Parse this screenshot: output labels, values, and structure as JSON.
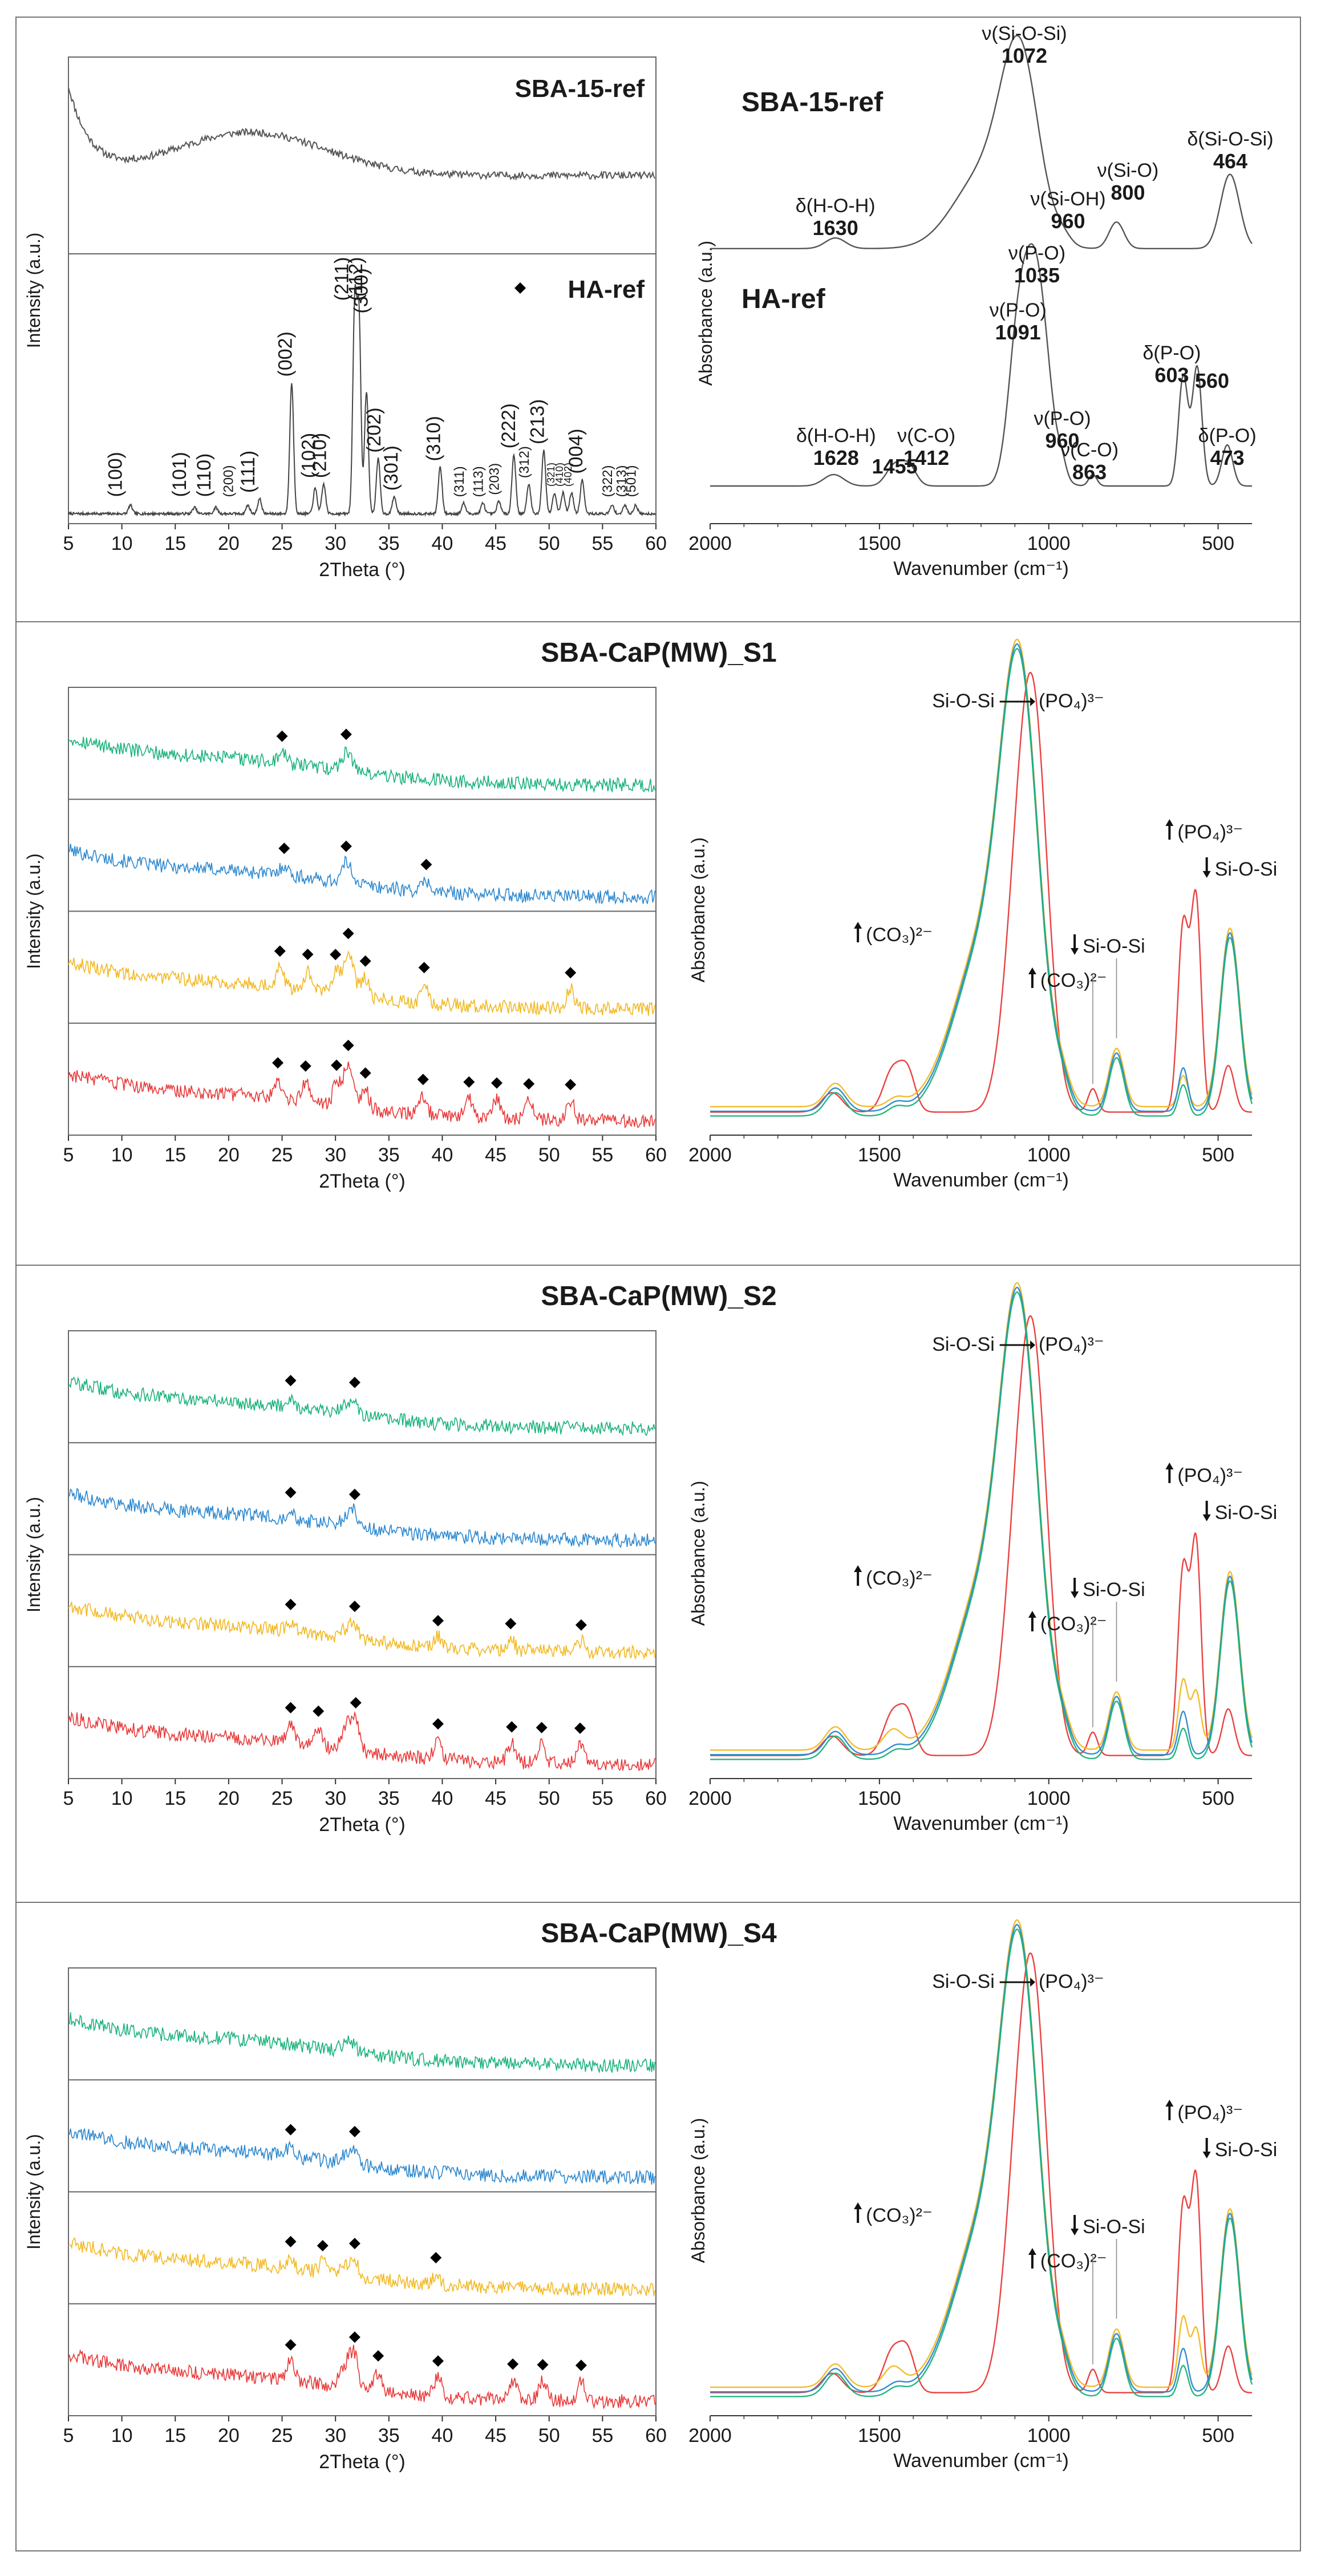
{
  "colors": {
    "green": "#19b27a",
    "blue": "#2a87cf",
    "yellow": "#f2b820",
    "red": "#e83838",
    "gray": "#555555",
    "annotation_red": "#e85555",
    "frame": "#777777"
  },
  "chart_data": [
    {
      "id": "ref-xrd",
      "type": "line",
      "xlabel": "2Theta (°)",
      "ylabel": "Intensity (a.u.)",
      "xlim": [
        5,
        60
      ],
      "x_ticks": [
        5,
        10,
        15,
        20,
        25,
        30,
        35,
        40,
        45,
        50,
        55,
        60
      ],
      "stack_titles": [
        "SBA-15-ref",
        "HA-ref"
      ],
      "ha_legend": "HA-ref",
      "series": [
        {
          "name": "SBA-15-ref",
          "kind": "amorphous",
          "color": "gray"
        },
        {
          "name": "HA-ref",
          "kind": "crystalline",
          "color": "gray"
        }
      ],
      "hkl_labels": [
        {
          "x": 10.0,
          "label": "(100)",
          "size": "big"
        },
        {
          "x": 16.0,
          "label": "(101)",
          "size": "big"
        },
        {
          "x": 18.3,
          "label": "(110)",
          "size": "big"
        },
        {
          "x": 20.4,
          "label": "(200)",
          "size": "small"
        },
        {
          "x": 22.4,
          "label": "(111)",
          "size": "big"
        },
        {
          "x": 25.9,
          "label": "(002)",
          "size": "big"
        },
        {
          "x": 28.1,
          "label": "(102)",
          "size": "big"
        },
        {
          "x": 29.1,
          "label": "(210)",
          "size": "big"
        },
        {
          "x": 31.2,
          "label": "(211)",
          "size": "big"
        },
        {
          "x": 32.5,
          "label": "(112)",
          "size": "big"
        },
        {
          "x": 33.0,
          "label": "(300)",
          "size": "big"
        },
        {
          "x": 34.2,
          "label": "(202)",
          "size": "big"
        },
        {
          "x": 35.8,
          "label": "(301)",
          "size": "big"
        },
        {
          "x": 39.8,
          "label": "(310)",
          "size": "big"
        },
        {
          "x": 42.0,
          "label": "(311)",
          "size": "small"
        },
        {
          "x": 43.8,
          "label": "(113)",
          "size": "small"
        },
        {
          "x": 45.3,
          "label": "(203)",
          "size": "small"
        },
        {
          "x": 46.8,
          "label": "(222)",
          "size": "big"
        },
        {
          "x": 48.1,
          "label": "(312)",
          "size": "small"
        },
        {
          "x": 49.5,
          "label": "(213)",
          "size": "big"
        },
        {
          "x": 50.5,
          "label": "(321)",
          "size": "tiny"
        },
        {
          "x": 51.3,
          "label": "(410)",
          "size": "tiny"
        },
        {
          "x": 52.1,
          "label": "(402)",
          "size": "tiny"
        },
        {
          "x": 53.1,
          "label": "(004)",
          "size": "big"
        },
        {
          "x": 55.9,
          "label": "(322)",
          "size": "small"
        },
        {
          "x": 57.2,
          "label": "(313)",
          "size": "small"
        },
        {
          "x": 58.1,
          "label": "(501)",
          "size": "small"
        }
      ],
      "ha_peaks": [
        {
          "x": 10.8,
          "h": 0.04
        },
        {
          "x": 16.8,
          "h": 0.03
        },
        {
          "x": 18.8,
          "h": 0.03
        },
        {
          "x": 21.8,
          "h": 0.04
        },
        {
          "x": 22.9,
          "h": 0.07
        },
        {
          "x": 25.9,
          "h": 0.62
        },
        {
          "x": 28.1,
          "h": 0.12
        },
        {
          "x": 28.9,
          "h": 0.14
        },
        {
          "x": 31.8,
          "h": 0.98
        },
        {
          "x": 32.2,
          "h": 0.92
        },
        {
          "x": 32.9,
          "h": 0.58
        },
        {
          "x": 34.0,
          "h": 0.26
        },
        {
          "x": 35.5,
          "h": 0.08
        },
        {
          "x": 39.8,
          "h": 0.22
        },
        {
          "x": 42.0,
          "h": 0.05
        },
        {
          "x": 43.8,
          "h": 0.05
        },
        {
          "x": 45.3,
          "h": 0.06
        },
        {
          "x": 46.7,
          "h": 0.28
        },
        {
          "x": 48.1,
          "h": 0.14
        },
        {
          "x": 49.5,
          "h": 0.3
        },
        {
          "x": 50.5,
          "h": 0.1
        },
        {
          "x": 51.3,
          "h": 0.1
        },
        {
          "x": 52.1,
          "h": 0.1
        },
        {
          "x": 53.1,
          "h": 0.16
        },
        {
          "x": 55.9,
          "h": 0.04
        },
        {
          "x": 57.1,
          "h": 0.04
        },
        {
          "x": 58.1,
          "h": 0.04
        }
      ]
    },
    {
      "id": "ref-ftir",
      "type": "line",
      "xlabel": "Wavenumber (cm⁻¹)",
      "ylabel": "Absorbance (a.u.)",
      "xlim": [
        2000,
        400
      ],
      "x_ticks": [
        2000,
        1500,
        1000,
        500
      ],
      "series": [
        {
          "name": "SBA-15-ref",
          "label": "SBA-15-ref",
          "color": "gray"
        },
        {
          "name": "HA-ref",
          "label": "HA-ref",
          "color": "gray"
        }
      ],
      "sba_annotations": [
        {
          "x": 1072,
          "name": "ν(Si-O-Si)",
          "value": "1072"
        },
        {
          "x": 1630,
          "name": "δ(H-O-H)",
          "value": "1630"
        },
        {
          "x": 960,
          "name": "ν(Si-OH)",
          "value": "960"
        },
        {
          "x": 800,
          "name": "ν(Si-O)",
          "value": "800"
        },
        {
          "x": 464,
          "name": "δ(Si-O-Si)",
          "value": "464"
        }
      ],
      "ha_annotations": [
        {
          "x": 1035,
          "name": "ν(P-O)",
          "value": "1035"
        },
        {
          "x": 1091,
          "name": "ν(P-O)",
          "value": "1091"
        },
        {
          "x": 1628,
          "name": "δ(H-O-H)",
          "value": "1628"
        },
        {
          "x": 1455,
          "name": "",
          "value": "1455"
        },
        {
          "x": 1412,
          "name": "ν(C-O)",
          "value": "1412"
        },
        {
          "x": 960,
          "name": "ν(P-O)",
          "value": "960"
        },
        {
          "x": 863,
          "name": "ν(C-O)",
          "value": "863"
        },
        {
          "x": 603,
          "name": "δ(P-O)",
          "value": "603"
        },
        {
          "x": 560,
          "name": "",
          "value": "560"
        },
        {
          "x": 473,
          "name": "δ(P-O)",
          "value": "473"
        }
      ]
    },
    {
      "id": "S1",
      "panel_title": "SBA-CaP(MW)_S1",
      "xrd": {
        "type": "line",
        "xlabel": "2Theta (°)",
        "ylabel": "Intensity (a.u.)",
        "xlim": [
          5,
          60
        ],
        "x_ticks": [
          5,
          10,
          15,
          20,
          25,
          30,
          35,
          40,
          45,
          50,
          55,
          60
        ],
        "series": [
          {
            "name": "green",
            "color": "green",
            "markers": [
              25.0,
              31.0
            ]
          },
          {
            "name": "blue",
            "color": "blue",
            "markers": [
              25.2,
              31.0,
              38.5
            ]
          },
          {
            "name": "yellow",
            "color": "yellow",
            "markers": [
              24.8,
              27.4,
              30.0,
              31.2,
              32.8,
              38.3,
              52.0
            ]
          },
          {
            "name": "red",
            "color": "red",
            "markers": [
              24.6,
              27.2,
              30.1,
              31.2,
              32.8,
              38.2,
              42.5,
              45.1,
              48.1,
              52.0
            ]
          }
        ]
      },
      "ftir": {
        "type": "line",
        "xlabel": "Wavenumber (cm⁻¹)",
        "ylabel": "Absorbance (a.u.)",
        "xlim": [
          2000,
          400
        ],
        "x_ticks": [
          2000,
          1500,
          1000,
          500
        ],
        "annotations": [
          "Si-O-Si",
          "(PO₄)³⁻",
          "(CO₃)²⁻",
          "(CO₃)²⁻",
          "Si-O-Si",
          "(PO₄)³⁻",
          "Si-O-Si"
        ],
        "series": [
          {
            "name": "green",
            "color": "green",
            "variant": "silica"
          },
          {
            "name": "blue",
            "color": "blue",
            "variant": "silica"
          },
          {
            "name": "yellow",
            "color": "yellow",
            "variant": "silica"
          },
          {
            "name": "red",
            "color": "red",
            "variant": "phosphate"
          }
        ]
      }
    },
    {
      "id": "S2",
      "panel_title": "SBA-CaP(MW)_S2",
      "xrd": {
        "type": "line",
        "xlabel": "2Theta (°)",
        "ylabel": "Intensity (a.u.)",
        "xlim": [
          5,
          60
        ],
        "x_ticks": [
          5,
          10,
          15,
          20,
          25,
          30,
          35,
          40,
          45,
          50,
          55,
          60
        ],
        "series": [
          {
            "name": "green",
            "color": "green",
            "markers": [
              25.8,
              31.8
            ]
          },
          {
            "name": "blue",
            "color": "blue",
            "markers": [
              25.8,
              31.8
            ]
          },
          {
            "name": "yellow",
            "color": "yellow",
            "markers": [
              25.8,
              31.8,
              39.6,
              46.4,
              53.0
            ]
          },
          {
            "name": "red",
            "color": "red",
            "markers": [
              25.8,
              28.4,
              31.9,
              39.6,
              46.5,
              49.3,
              52.9
            ]
          }
        ]
      },
      "ftir": {
        "type": "line",
        "xlabel": "Wavenumber (cm⁻¹)",
        "ylabel": "Absorbance (a.u.)",
        "xlim": [
          2000,
          400
        ],
        "x_ticks": [
          2000,
          1500,
          1000,
          500
        ],
        "annotations": [
          "Si-O-Si",
          "(PO₄)³⁻",
          "(CO₃)²⁻",
          "(CO₃)²⁻",
          "Si-O-Si",
          "(PO₄)³⁻",
          "Si-O-Si"
        ],
        "series": [
          {
            "name": "green",
            "color": "green",
            "variant": "silica"
          },
          {
            "name": "blue",
            "color": "blue",
            "variant": "silica"
          },
          {
            "name": "yellow",
            "color": "yellow",
            "variant": "mixed"
          },
          {
            "name": "red",
            "color": "red",
            "variant": "phosphate"
          }
        ]
      }
    },
    {
      "id": "S4",
      "panel_title": "SBA-CaP(MW)_S4",
      "xrd": {
        "type": "line",
        "xlabel": "2Theta (°)",
        "ylabel": "Intensity (a.u.)",
        "xlim": [
          5,
          60
        ],
        "x_ticks": [
          5,
          10,
          15,
          20,
          25,
          30,
          35,
          40,
          45,
          50,
          55,
          60
        ],
        "series": [
          {
            "name": "green",
            "color": "green",
            "markers": []
          },
          {
            "name": "blue",
            "color": "blue",
            "markers": [
              25.8,
              31.8
            ]
          },
          {
            "name": "yellow",
            "color": "yellow",
            "markers": [
              25.8,
              28.8,
              31.8,
              39.4
            ]
          },
          {
            "name": "red",
            "color": "red",
            "markers": [
              25.8,
              31.8,
              34.0,
              39.6,
              46.6,
              49.4,
              53.0
            ]
          }
        ]
      },
      "ftir": {
        "type": "line",
        "xlabel": "Wavenumber (cm⁻¹)",
        "ylabel": "Absorbance (a.u.)",
        "xlim": [
          2000,
          400
        ],
        "x_ticks": [
          2000,
          1500,
          1000,
          500
        ],
        "annotations": [
          "Si-O-Si",
          "(PO₄)³⁻",
          "(CO₃)²⁻",
          "(CO₃)²⁻",
          "Si-O-Si",
          "(PO₄)³⁻",
          "Si-O-Si"
        ],
        "series": [
          {
            "name": "green",
            "color": "green",
            "variant": "silica"
          },
          {
            "name": "blue",
            "color": "blue",
            "variant": "silica"
          },
          {
            "name": "yellow",
            "color": "yellow",
            "variant": "mixed"
          },
          {
            "name": "red",
            "color": "red",
            "variant": "phosphate"
          }
        ]
      }
    }
  ]
}
